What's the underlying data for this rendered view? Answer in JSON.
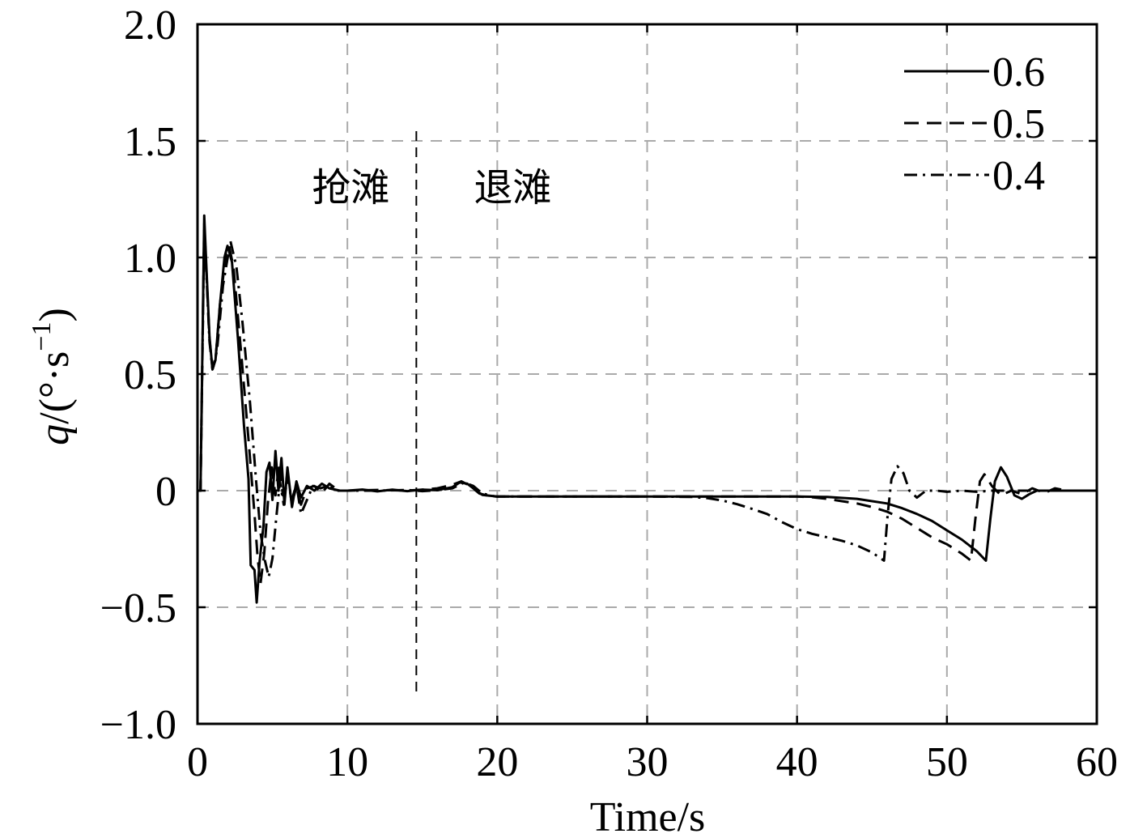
{
  "chart_data": {
    "type": "line",
    "xlabel": "Time/s",
    "ylabel": {
      "symbol": "q",
      "unit_open": "/(°·s",
      "unit_exp": "−1",
      "unit_close": ")"
    },
    "xlim": [
      0,
      60
    ],
    "ylim": [
      -1.0,
      2.0
    ],
    "xticks": [
      0,
      10,
      20,
      30,
      40,
      50,
      60
    ],
    "xtick_labels": [
      "0",
      "10",
      "20",
      "30",
      "40",
      "50",
      "60"
    ],
    "yticks": [
      -1.0,
      -0.5,
      0,
      0.5,
      1.0,
      1.5,
      2.0
    ],
    "ytick_labels": [
      "−1.0",
      "−0.5",
      "0",
      "0.5",
      "1.0",
      "1.5",
      "2.0"
    ],
    "grid": true,
    "grid_style": "dashed",
    "legend_position": "top-right",
    "colors": {
      "series": "#000000",
      "grid": "#aaaaaa"
    },
    "series": [
      {
        "name": "0.6",
        "line_style": "solid",
        "x": [
          0,
          0.2,
          0.45,
          0.6,
          0.8,
          1.0,
          1.2,
          1.5,
          1.8,
          2.0,
          2.3,
          2.7,
          3.1,
          3.4,
          3.55,
          3.8,
          3.95,
          4.15,
          4.4,
          4.6,
          4.8,
          5.0,
          5.2,
          5.4,
          5.6,
          5.8,
          6.0,
          6.3,
          6.6,
          6.9,
          7.3,
          7.8,
          8.3,
          8.8,
          9.5,
          10,
          11,
          12,
          13,
          14,
          15,
          16,
          17,
          17.5,
          18,
          18.5,
          19,
          20,
          30,
          40,
          42,
          44,
          46,
          47,
          48,
          49,
          50,
          51,
          52,
          52.6,
          52.9,
          53.2,
          53.6,
          54,
          54.5,
          55,
          55.5,
          56,
          60
        ],
        "y": [
          0,
          0,
          1.18,
          0.95,
          0.66,
          0.52,
          0.56,
          0.8,
          1.0,
          1.05,
          0.98,
          0.65,
          0.28,
          0.05,
          -0.32,
          -0.34,
          -0.48,
          -0.3,
          -0.15,
          0.08,
          0.12,
          -0.04,
          0.17,
          0,
          0.14,
          -0.06,
          0.1,
          -0.07,
          0.04,
          -0.03,
          0.02,
          0,
          0.03,
          0.01,
          0,
          0,
          0.005,
          -0.003,
          0.004,
          -0.002,
          0.004,
          0.002,
          0.015,
          0.035,
          0.03,
          0.005,
          -0.018,
          -0.025,
          -0.025,
          -0.025,
          -0.027,
          -0.035,
          -0.055,
          -0.075,
          -0.1,
          -0.13,
          -0.17,
          -0.21,
          -0.26,
          -0.3,
          -0.12,
          0.04,
          0.1,
          0.06,
          -0.02,
          -0.035,
          -0.015,
          0,
          0
        ]
      },
      {
        "name": "0.5",
        "line_style": "dashed",
        "x": [
          0,
          0.2,
          0.45,
          0.6,
          0.8,
          1.0,
          1.2,
          1.5,
          1.9,
          2.1,
          2.4,
          2.9,
          3.4,
          3.8,
          4.0,
          4.2,
          4.45,
          4.7,
          4.95,
          5.2,
          5.45,
          5.7,
          6.0,
          6.3,
          6.6,
          6.9,
          7.3,
          7.8,
          8.3,
          8.8,
          9.4,
          10,
          12,
          14,
          15,
          16,
          17,
          17.6,
          18.2,
          18.8,
          19.5,
          20,
          30,
          40,
          41,
          42,
          43,
          44,
          45,
          46,
          47,
          48,
          49,
          50,
          51,
          51.6,
          51.9,
          52.2,
          52.5,
          53,
          53.6,
          54.3,
          55,
          55.7,
          56.5,
          57.2,
          58,
          60
        ],
        "y": [
          0,
          0,
          1.15,
          0.93,
          0.65,
          0.52,
          0.56,
          0.8,
          1.02,
          1.05,
          0.96,
          0.6,
          0.22,
          -0.1,
          -0.28,
          -0.4,
          -0.27,
          -0.05,
          0.1,
          -0.02,
          0.12,
          -0.02,
          0.07,
          -0.06,
          0.02,
          -0.06,
          0.01,
          0.02,
          -0.01,
          0.03,
          0,
          0,
          0.003,
          0,
          0.004,
          0.01,
          0.025,
          0.04,
          0.02,
          -0.012,
          -0.024,
          -0.025,
          -0.025,
          -0.025,
          -0.028,
          -0.035,
          -0.045,
          -0.055,
          -0.07,
          -0.09,
          -0.12,
          -0.16,
          -0.2,
          -0.23,
          -0.27,
          -0.3,
          -0.12,
          0.04,
          0.07,
          0.02,
          -0.02,
          0,
          -0.015,
          0.01,
          -0.01,
          0.01,
          0,
          0
        ]
      },
      {
        "name": "0.4",
        "line_style": "dashdot",
        "x": [
          0,
          0.2,
          0.45,
          0.6,
          0.8,
          1.0,
          1.3,
          1.7,
          2.2,
          2.6,
          3.0,
          3.5,
          3.9,
          4.2,
          4.5,
          4.75,
          5.0,
          5.25,
          5.5,
          5.75,
          6.0,
          6.3,
          6.6,
          6.9,
          7.3,
          7.7,
          8.2,
          8.7,
          9.3,
          10,
          12,
          14,
          15,
          16,
          17,
          17.8,
          18.4,
          19.0,
          19.8,
          20,
          30,
          33,
          34,
          35,
          36,
          37,
          38,
          39,
          40,
          41,
          42,
          43,
          44,
          45,
          45.8,
          46.05,
          46.3,
          46.7,
          47.1,
          47.5,
          48,
          48.6,
          49.3,
          50,
          51,
          52,
          53,
          55,
          60
        ],
        "y": [
          0,
          0,
          1.12,
          0.92,
          0.64,
          0.52,
          0.6,
          0.88,
          1.07,
          0.96,
          0.72,
          0.38,
          0.05,
          -0.18,
          -0.3,
          -0.37,
          -0.29,
          -0.12,
          0.04,
          -0.06,
          0.06,
          -0.04,
          0.03,
          -0.1,
          -0.04,
          0.02,
          0.01,
          0.02,
          0,
          0,
          0,
          0.003,
          -0.002,
          0.002,
          0.01,
          0.035,
          0.02,
          -0.012,
          -0.024,
          -0.025,
          -0.025,
          -0.027,
          -0.032,
          -0.042,
          -0.058,
          -0.078,
          -0.1,
          -0.135,
          -0.165,
          -0.185,
          -0.2,
          -0.215,
          -0.235,
          -0.265,
          -0.3,
          -0.1,
          0.05,
          0.105,
          0.075,
          0,
          -0.03,
          0,
          0,
          -0.005,
          0,
          -0.005,
          0,
          0,
          0
        ]
      }
    ],
    "annotations": [
      {
        "text": "抢滩"
      },
      {
        "text": "退滩"
      }
    ],
    "reference_lines": [
      {
        "orientation": "vertical",
        "x": 14.6,
        "style": "dashed"
      }
    ]
  }
}
